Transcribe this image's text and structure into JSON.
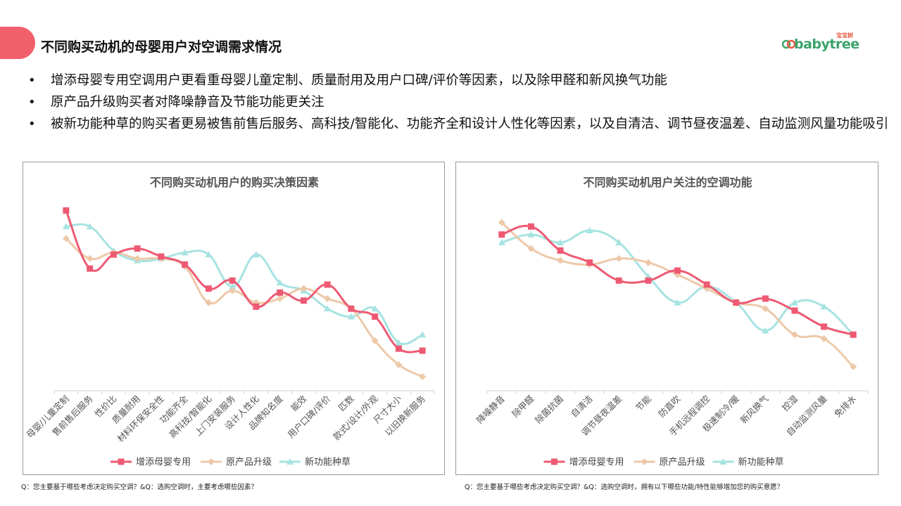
{
  "header": {
    "title": "不同购买动机的母婴用户对空调需求情况",
    "logo_text": "babytree",
    "logo_sub": "宝宝树"
  },
  "bullets": [
    "增添母婴专用空调用户更看重母婴儿童定制、质量耐用及用户口碑/评价等因素，以及除甲醛和新风换气功能",
    "原产品升级购买者对降噪静音及节能功能更关注",
    "被新功能种草的购买者更易被售前售后服务、高科技/智能化、功能齐全和设计人性化等因素，以及自清洁、调节昼夜温差、自动监测风量功能吸引"
  ],
  "colors": {
    "accent_tab": "#f2606d",
    "series1": "#ee5a73",
    "series2": "#edc9a9",
    "series3": "#a6e3e1"
  },
  "footnotes": {
    "left": "Q：您主要基于哪些考虑决定购买空调？&Q：选购空调时，主要考虑哪些因素？",
    "right": "Q：您主要基于哪些考虑决定购买空调？&Q：选购空调时，拥有以下哪些功能/特性能够增加您的购买意愿？"
  },
  "chart_data": [
    {
      "type": "line",
      "smooth": true,
      "title": "不同购买动机用户的购买决策因素",
      "categories": [
        "母婴/儿童定制",
        "售前售后服务",
        "性价比",
        "质量耐用",
        "材料环保安全性",
        "功能齐全",
        "高科技/智能化",
        "上门安装服务",
        "设计人性化",
        "品牌知名度",
        "能效",
        "用户口碑/评价",
        "匹数",
        "款式/设计/外观",
        "尺寸大小",
        "以旧换新服务"
      ],
      "series": [
        {
          "name": "增添母婴专用",
          "marker": "square",
          "values": [
            90,
            61,
            68,
            71,
            67,
            63,
            51,
            55,
            42,
            49,
            45,
            53,
            41,
            37,
            21,
            20
          ]
        },
        {
          "name": "原产品升级",
          "marker": "diamond",
          "values": [
            76,
            66,
            69,
            66,
            66,
            62,
            44,
            50,
            44,
            46,
            51,
            46,
            41,
            25,
            13,
            7
          ]
        },
        {
          "name": "新功能种草",
          "marker": "triangle",
          "values": [
            82,
            82,
            70,
            65,
            66,
            69,
            68,
            52,
            68,
            54,
            50,
            41,
            37,
            41,
            24,
            28
          ]
        }
      ],
      "ylim": [
        0,
        100
      ],
      "legend": "bottom"
    },
    {
      "type": "line",
      "smooth": true,
      "title": "不同购买动机用户关注的空调功能",
      "categories": [
        "降噪静音",
        "除甲醛",
        "除菌抗菌",
        "自清洁",
        "调节昼夜温差",
        "节能",
        "防直吹",
        "手机远程调控",
        "极速制冷/暖",
        "新风换气",
        "控湿",
        "自动监测风量",
        "免排水"
      ],
      "series": [
        {
          "name": "增添母婴专用",
          "marker": "square",
          "values": [
            78,
            82,
            70,
            64,
            55,
            55,
            60,
            53,
            44,
            46,
            40,
            32,
            28
          ]
        },
        {
          "name": "原产品升级",
          "marker": "diamond",
          "values": [
            84,
            71,
            65,
            63,
            66,
            64,
            58,
            51,
            44,
            41,
            28,
            26,
            12
          ]
        },
        {
          "name": "新功能种草",
          "marker": "triangle",
          "values": [
            74,
            78,
            74,
            80,
            74,
            57,
            44,
            52,
            44,
            30,
            44,
            42,
            28
          ]
        }
      ],
      "ylim": [
        0,
        100
      ],
      "legend": "bottom"
    }
  ]
}
